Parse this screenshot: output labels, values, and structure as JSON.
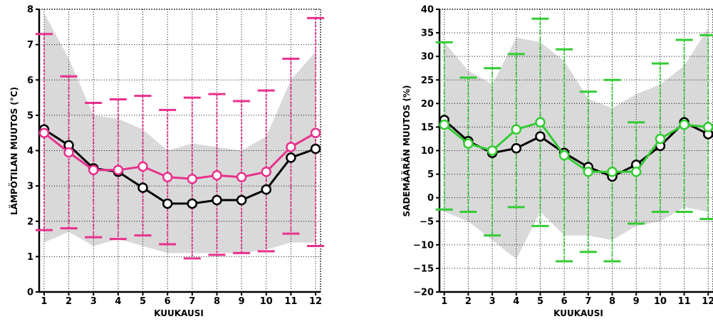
{
  "charts": [
    {
      "id": "left",
      "ylabel": "LÄMPÖTILAN MUUTOS (°C)",
      "xlabel": "KUUKAUSI"
    },
    {
      "id": "right",
      "ylabel": "SADEMÄÄRÄN MUUTOS (%)",
      "xlabel": "KUUKAUSI"
    }
  ],
  "chart_data": [
    {
      "type": "line",
      "x": [
        1,
        2,
        3,
        4,
        5,
        6,
        7,
        8,
        9,
        10,
        11,
        12
      ],
      "xlabel": "KUUKAUSI",
      "ylabel": "LÄMPÖTILAN MUUTOS (°C)",
      "xlim": [
        0.8,
        12.2
      ],
      "ylim": [
        0,
        8
      ],
      "yticks": [
        0,
        1,
        2,
        3,
        4,
        5,
        6,
        7,
        8
      ],
      "grid": true,
      "shaded_range": {
        "color": "#d9d9d9",
        "upper": [
          7.9,
          6.6,
          5.0,
          4.9,
          4.6,
          4.0,
          4.2,
          4.1,
          4.0,
          4.4,
          6.0,
          6.8
        ],
        "lower": [
          1.4,
          1.7,
          1.3,
          1.5,
          1.3,
          1.1,
          1.1,
          1.1,
          1.1,
          1.2,
          1.4,
          1.4
        ]
      },
      "series": [
        {
          "color": "#000000",
          "values": [
            4.6,
            4.15,
            3.5,
            3.4,
            2.95,
            2.5,
            2.5,
            2.6,
            2.6,
            2.9,
            3.8,
            4.05
          ]
        },
        {
          "color": "#e8308c",
          "values": [
            4.5,
            3.95,
            3.45,
            3.45,
            3.55,
            3.25,
            3.2,
            3.3,
            3.25,
            3.4,
            4.1,
            4.5
          ],
          "error_high": [
            7.3,
            6.1,
            5.35,
            5.45,
            5.55,
            5.15,
            5.5,
            5.6,
            5.4,
            5.7,
            6.6,
            7.75
          ],
          "error_low": [
            1.75,
            1.8,
            1.55,
            1.5,
            1.6,
            1.35,
            0.95,
            1.05,
            1.1,
            1.15,
            1.65,
            1.3
          ]
        }
      ]
    },
    {
      "type": "line",
      "x": [
        1,
        2,
        3,
        4,
        5,
        6,
        7,
        8,
        9,
        10,
        11,
        12
      ],
      "xlabel": "KUUKAUSI",
      "ylabel": "SADEMÄÄRÄN MUUTOS (%)",
      "xlim": [
        0.8,
        12.2
      ],
      "ylim": [
        -20,
        40
      ],
      "yticks": [
        -20,
        -15,
        -10,
        -5,
        0,
        5,
        10,
        15,
        20,
        25,
        30,
        35,
        40
      ],
      "grid": true,
      "shaded_range": {
        "color": "#d9d9d9",
        "upper": [
          33,
          27,
          24,
          34,
          33,
          29,
          21,
          19,
          22,
          24,
          28,
          36
        ],
        "lower": [
          -3,
          -5,
          -9,
          -13,
          -3,
          -8,
          -8,
          -9,
          -6,
          -5,
          -2,
          -3
        ]
      },
      "series": [
        {
          "color": "#000000",
          "values": [
            16.5,
            12,
            9.5,
            10.5,
            13,
            9.5,
            6.5,
            4.5,
            7,
            11,
            16,
            13.5
          ]
        },
        {
          "color": "#33cc33",
          "values": [
            15.5,
            11.5,
            10,
            14.5,
            16,
            9,
            5.5,
            5.5,
            5.5,
            12.5,
            15.5,
            15
          ],
          "error_high": [
            33,
            25.5,
            27.5,
            30.5,
            38,
            31.5,
            22.5,
            25,
            16,
            28.5,
            33.5,
            34.5
          ],
          "error_low": [
            -2.5,
            -3,
            -8,
            -2,
            -6,
            -13.5,
            -11.5,
            -13.5,
            -5.5,
            -3,
            -3,
            -4.5
          ]
        }
      ]
    }
  ]
}
